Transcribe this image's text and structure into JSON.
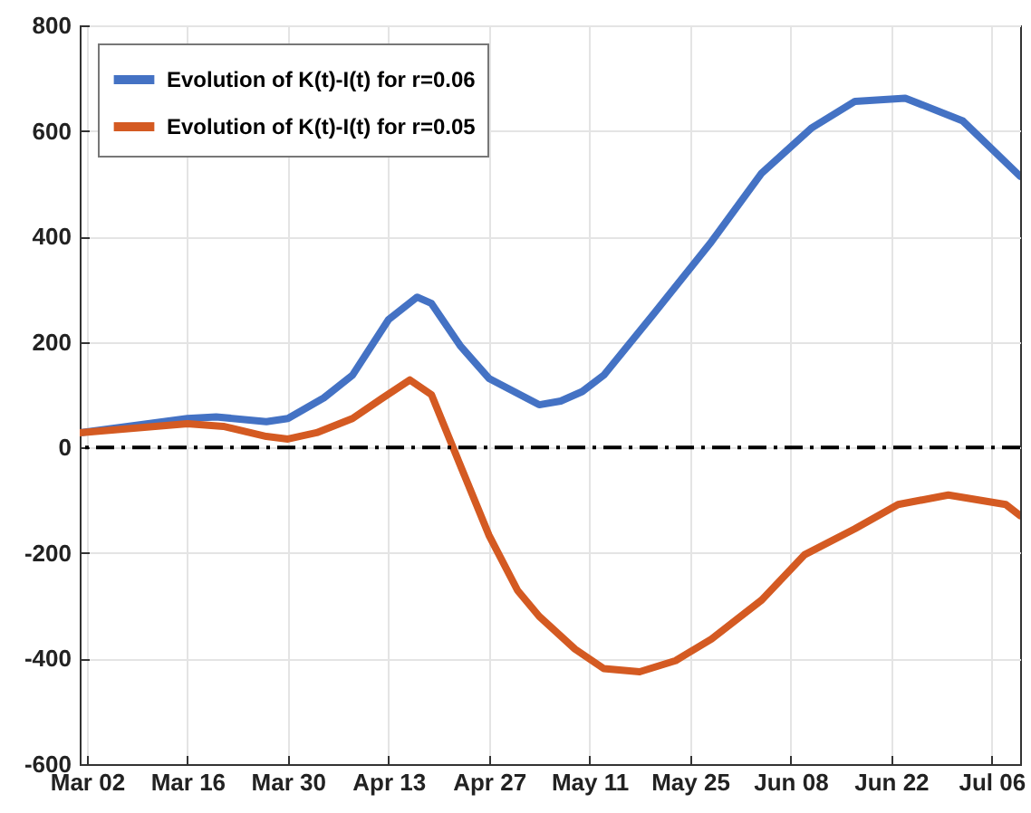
{
  "chart_data": {
    "type": "line",
    "series": [
      {
        "name": "Evolution of K(t)-I(t) for r=0.06",
        "color": "#4472c4",
        "x": [
          "--03-01",
          "--03-16",
          "--03-20",
          "--03-27",
          "--03-30",
          "--04-04",
          "--04-08",
          "--04-13",
          "--04-17",
          "--04-19",
          "--04-23",
          "--04-27",
          "--05-04",
          "--05-07",
          "--05-10",
          "--05-13",
          "--05-20",
          "--05-28",
          "--06-04",
          "--06-11",
          "--06-17",
          "--06-24",
          "--07-02",
          "--07-10"
        ],
        "values": [
          28,
          55,
          58,
          49,
          55,
          94,
          137,
          242,
          285,
          273,
          193,
          131,
          81,
          88,
          106,
          137,
          254,
          390,
          520,
          606,
          656,
          662,
          619,
          514
        ]
      },
      {
        "name": "Evolution of K(t)-I(t) for r=0.05",
        "color": "#d45a22",
        "x": [
          "--03-01",
          "--03-16",
          "--03-21",
          "--03-27",
          "--03-30",
          "--04-03",
          "--04-08",
          "--04-12",
          "--04-16",
          "--04-19",
          "--04-22",
          "--04-27",
          "--05-01",
          "--05-04",
          "--05-09",
          "--05-13",
          "--05-18",
          "--05-23",
          "--05-28",
          "--06-04",
          "--06-10",
          "--06-17",
          "--06-23",
          "--06-30",
          "--07-08",
          "--07-10"
        ],
        "values": [
          28,
          45,
          40,
          21,
          16,
          28,
          55,
          92,
          128,
          100,
          0,
          -166,
          -271,
          -320,
          -382,
          -419,
          -425,
          -404,
          -363,
          -289,
          -203,
          -154,
          -108,
          -90,
          -108,
          -129
        ]
      }
    ],
    "xlim": [
      "--03-01",
      "--07-10"
    ],
    "xticks": [
      {
        "value": "--03-02",
        "label": "Mar 02"
      },
      {
        "value": "--03-16",
        "label": "Mar 16"
      },
      {
        "value": "--03-30",
        "label": "Mar 30"
      },
      {
        "value": "--04-13",
        "label": "Apr 13"
      },
      {
        "value": "--04-27",
        "label": "Apr 27"
      },
      {
        "value": "--05-11",
        "label": "May 11"
      },
      {
        "value": "--05-25",
        "label": "May 25"
      },
      {
        "value": "--06-08",
        "label": "Jun 08"
      },
      {
        "value": "--06-22",
        "label": "Jun 22"
      },
      {
        "value": "--07-06",
        "label": "Jul 06"
      }
    ],
    "ylim": [
      -600,
      800
    ],
    "yticks": [
      -600,
      -400,
      -200,
      0,
      200,
      400,
      600,
      800
    ],
    "ref_lines": [
      {
        "axis": "y",
        "value": 0,
        "color": "#000000",
        "line_style": "dashed"
      }
    ],
    "grid": true,
    "legend": "top left",
    "line_style": "solid",
    "marker": "none"
  }
}
